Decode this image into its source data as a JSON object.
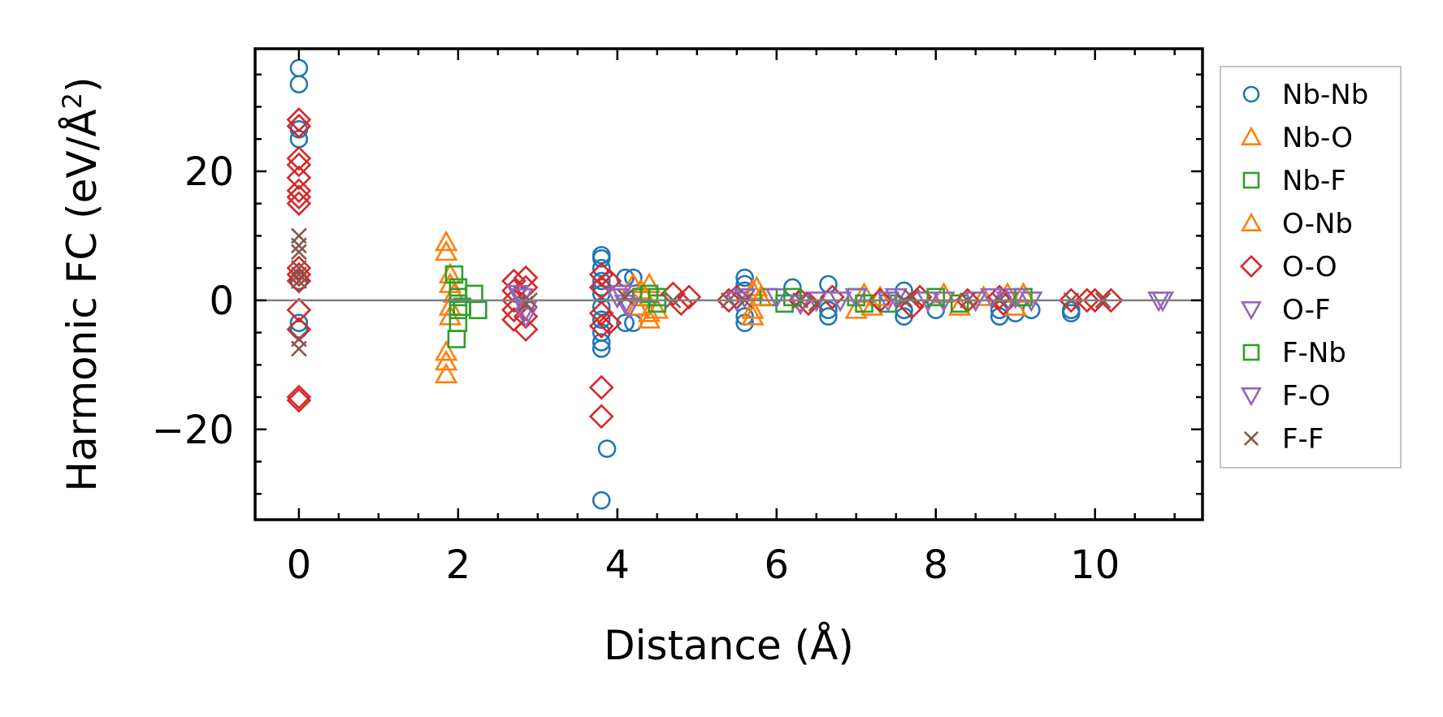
{
  "chart_data": {
    "type": "scatter",
    "xlabel": "Distance (Å)",
    "ylabel_main": "Harmonic FC (eV/Å",
    "ylabel_sup": "2",
    "ylabel_end": ")",
    "xlim": [
      -0.55,
      11.35
    ],
    "ylim": [
      -34,
      39
    ],
    "xticks": [
      0,
      2,
      4,
      6,
      8,
      10
    ],
    "xtick_labels": [
      "0",
      "2",
      "4",
      "6",
      "8",
      "10"
    ],
    "yticks": [
      -20,
      0,
      20
    ],
    "ytick_labels": [
      "−20",
      "0",
      "20"
    ],
    "zero_line": true,
    "legend_position": "outside-right",
    "series": [
      {
        "name": "Nb-Nb",
        "marker": "circle",
        "color": "#1f77b4",
        "points": [
          [
            0,
            36
          ],
          [
            0,
            33.5
          ],
          [
            0,
            26.5
          ],
          [
            0,
            25
          ],
          [
            0,
            3
          ],
          [
            0,
            -3.5
          ],
          [
            0,
            -4.5
          ],
          [
            3.8,
            7
          ],
          [
            3.8,
            6.5
          ],
          [
            3.8,
            5
          ],
          [
            3.8,
            3
          ],
          [
            3.8,
            2
          ],
          [
            3.8,
            1
          ],
          [
            3.8,
            -1
          ],
          [
            3.8,
            -3
          ],
          [
            3.8,
            -5
          ],
          [
            3.8,
            -6.5
          ],
          [
            3.8,
            -7.5
          ],
          [
            3.87,
            -23
          ],
          [
            3.8,
            -31
          ],
          [
            4.1,
            3.5
          ],
          [
            4.2,
            3.5
          ],
          [
            4.1,
            -3.5
          ],
          [
            4.2,
            -3.5
          ],
          [
            5.6,
            3.5
          ],
          [
            5.6,
            2.5
          ],
          [
            5.6,
            1.5
          ],
          [
            5.6,
            -2.5
          ],
          [
            5.6,
            -3.5
          ],
          [
            6.2,
            2
          ],
          [
            6.65,
            2.5
          ],
          [
            6.65,
            -1.5
          ],
          [
            6.65,
            -2.5
          ],
          [
            7.6,
            1.5
          ],
          [
            7.6,
            -1.5
          ],
          [
            7.6,
            -2.5
          ],
          [
            8.0,
            -1.5
          ],
          [
            8.8,
            -1.5
          ],
          [
            8.8,
            -2.5
          ],
          [
            9.0,
            -2
          ],
          [
            9.2,
            -1.5
          ],
          [
            9.7,
            -1.5
          ],
          [
            9.7,
            -2
          ]
        ]
      },
      {
        "name": "Nb-O",
        "marker": "triangle-up",
        "color": "#ff7f0e",
        "points": [
          [
            1.85,
            9
          ],
          [
            1.85,
            7.5
          ],
          [
            1.9,
            4
          ],
          [
            1.9,
            2.5
          ],
          [
            1.95,
            1
          ],
          [
            1.9,
            -1
          ],
          [
            1.9,
            -2.5
          ],
          [
            1.85,
            -8
          ],
          [
            1.85,
            -9.5
          ],
          [
            1.85,
            -11.5
          ],
          [
            4.2,
            2.5
          ],
          [
            4.3,
            1.5
          ],
          [
            4.4,
            2.5
          ],
          [
            4.4,
            -2
          ],
          [
            4.4,
            -3
          ],
          [
            4.5,
            -1.5
          ],
          [
            5.7,
            1.5
          ],
          [
            5.7,
            -1.5
          ],
          [
            5.7,
            -2.5
          ],
          [
            5.75,
            2
          ],
          [
            7.0,
            -1.5
          ],
          [
            7.1,
            1
          ],
          [
            7.2,
            -1
          ],
          [
            8.1,
            1
          ],
          [
            8.3,
            -1
          ],
          [
            8.9,
            1
          ],
          [
            9.0,
            -1
          ],
          [
            9.1,
            1
          ]
        ]
      },
      {
        "name": "Nb-F",
        "marker": "square",
        "color": "#2ca02c",
        "points": [
          [
            1.95,
            4
          ],
          [
            2.0,
            2
          ],
          [
            2.0,
            0.5
          ],
          [
            2.0,
            -1.5
          ],
          [
            2.0,
            -3.5
          ],
          [
            1.98,
            -6
          ],
          [
            2.05,
            -1
          ],
          [
            2.2,
            1
          ],
          [
            2.25,
            -1.5
          ],
          [
            4.3,
            0.5
          ],
          [
            4.5,
            -0.5
          ],
          [
            5.9,
            0.5
          ],
          [
            6.1,
            -0.5
          ],
          [
            7.0,
            0.5
          ],
          [
            7.4,
            -0.5
          ]
        ]
      },
      {
        "name": "O-Nb",
        "marker": "triangle-up",
        "color": "#ff7f0e",
        "points": [
          [
            4.25,
            -1
          ],
          [
            4.35,
            0.5
          ],
          [
            5.8,
            0.5
          ],
          [
            7.3,
            0.5
          ],
          [
            8.6,
            0.5
          ]
        ]
      },
      {
        "name": "O-O",
        "marker": "diamond",
        "color": "#d62728",
        "points": [
          [
            0,
            28
          ],
          [
            0,
            27
          ],
          [
            0,
            22
          ],
          [
            0,
            21
          ],
          [
            0,
            19
          ],
          [
            0,
            17
          ],
          [
            0,
            16
          ],
          [
            0,
            15
          ],
          [
            0,
            5
          ],
          [
            0,
            4
          ],
          [
            0,
            3
          ],
          [
            0,
            -1.5
          ],
          [
            0,
            -4.5
          ],
          [
            0,
            -15
          ],
          [
            0,
            -15.5
          ],
          [
            2.7,
            3
          ],
          [
            2.7,
            1.5
          ],
          [
            2.7,
            0
          ],
          [
            2.7,
            -1.5
          ],
          [
            2.7,
            -3
          ],
          [
            2.85,
            3.5
          ],
          [
            2.85,
            2
          ],
          [
            2.85,
            -2.5
          ],
          [
            2.85,
            -4.5
          ],
          [
            3.8,
            4
          ],
          [
            3.8,
            2
          ],
          [
            3.8,
            -2
          ],
          [
            3.8,
            -4
          ],
          [
            3.8,
            -13.5
          ],
          [
            3.8,
            -18
          ],
          [
            3.9,
            -3.5
          ],
          [
            3.9,
            3
          ],
          [
            4.7,
            1
          ],
          [
            4.8,
            -0.5
          ],
          [
            4.9,
            0.5
          ],
          [
            5.4,
            0
          ],
          [
            5.5,
            0.5
          ],
          [
            6.3,
            0
          ],
          [
            6.4,
            -0.5
          ],
          [
            6.7,
            0.5
          ],
          [
            7.3,
            0
          ],
          [
            7.7,
            -1
          ],
          [
            7.8,
            0.5
          ],
          [
            8.4,
            0
          ],
          [
            8.8,
            0.5
          ],
          [
            8.85,
            -0.5
          ],
          [
            9.7,
            0
          ],
          [
            9.9,
            0
          ],
          [
            10.0,
            0
          ],
          [
            10.2,
            0
          ]
        ]
      },
      {
        "name": "O-F",
        "marker": "triangle-down",
        "color": "#9467bd",
        "points": [
          [
            2.75,
            1
          ],
          [
            2.85,
            -1.5
          ],
          [
            2.85,
            -2.5
          ],
          [
            4.0,
            0.5
          ],
          [
            4.1,
            -0.5
          ],
          [
            5.5,
            0
          ],
          [
            6.0,
            0.5
          ],
          [
            6.3,
            -0.5
          ],
          [
            6.8,
            0
          ],
          [
            7.0,
            0.5
          ],
          [
            7.4,
            0
          ],
          [
            7.9,
            0
          ],
          [
            8.1,
            0
          ],
          [
            8.7,
            0.5
          ],
          [
            8.9,
            0
          ],
          [
            9.2,
            0
          ],
          [
            10.8,
            0
          ]
        ]
      },
      {
        "name": "F-Nb",
        "marker": "square",
        "color": "#2ca02c",
        "points": [
          [
            4.4,
            1
          ],
          [
            4.5,
            0.5
          ],
          [
            6.2,
            0.5
          ],
          [
            7.1,
            -0.5
          ],
          [
            8.0,
            0.5
          ],
          [
            8.3,
            -0.5
          ],
          [
            9.1,
            0.5
          ]
        ]
      },
      {
        "name": "F-O",
        "marker": "triangle-down",
        "color": "#9467bd",
        "points": [
          [
            2.8,
            0.5
          ],
          [
            4.05,
            1
          ],
          [
            4.15,
            -1
          ],
          [
            5.6,
            0.5
          ],
          [
            6.5,
            0
          ],
          [
            7.5,
            0.5
          ],
          [
            8.5,
            0
          ],
          [
            9.0,
            0.5
          ],
          [
            10.85,
            0
          ]
        ]
      },
      {
        "name": "F-F",
        "marker": "x",
        "color": "#8c564b",
        "points": [
          [
            0,
            10
          ],
          [
            0,
            8.5
          ],
          [
            0,
            7.5
          ],
          [
            0,
            5
          ],
          [
            0,
            4
          ],
          [
            0,
            3
          ],
          [
            0,
            -6
          ],
          [
            0,
            -7.5
          ],
          [
            2.9,
            0
          ],
          [
            2.85,
            -0.5
          ],
          [
            4.1,
            0.5
          ],
          [
            4.7,
            0
          ],
          [
            5.4,
            0
          ],
          [
            5.6,
            0
          ],
          [
            6.3,
            0
          ],
          [
            6.5,
            -0.5
          ],
          [
            7.6,
            0
          ],
          [
            7.7,
            0.5
          ],
          [
            8.4,
            0
          ],
          [
            8.8,
            0
          ],
          [
            9.7,
            0
          ],
          [
            10.1,
            0
          ]
        ]
      }
    ]
  }
}
